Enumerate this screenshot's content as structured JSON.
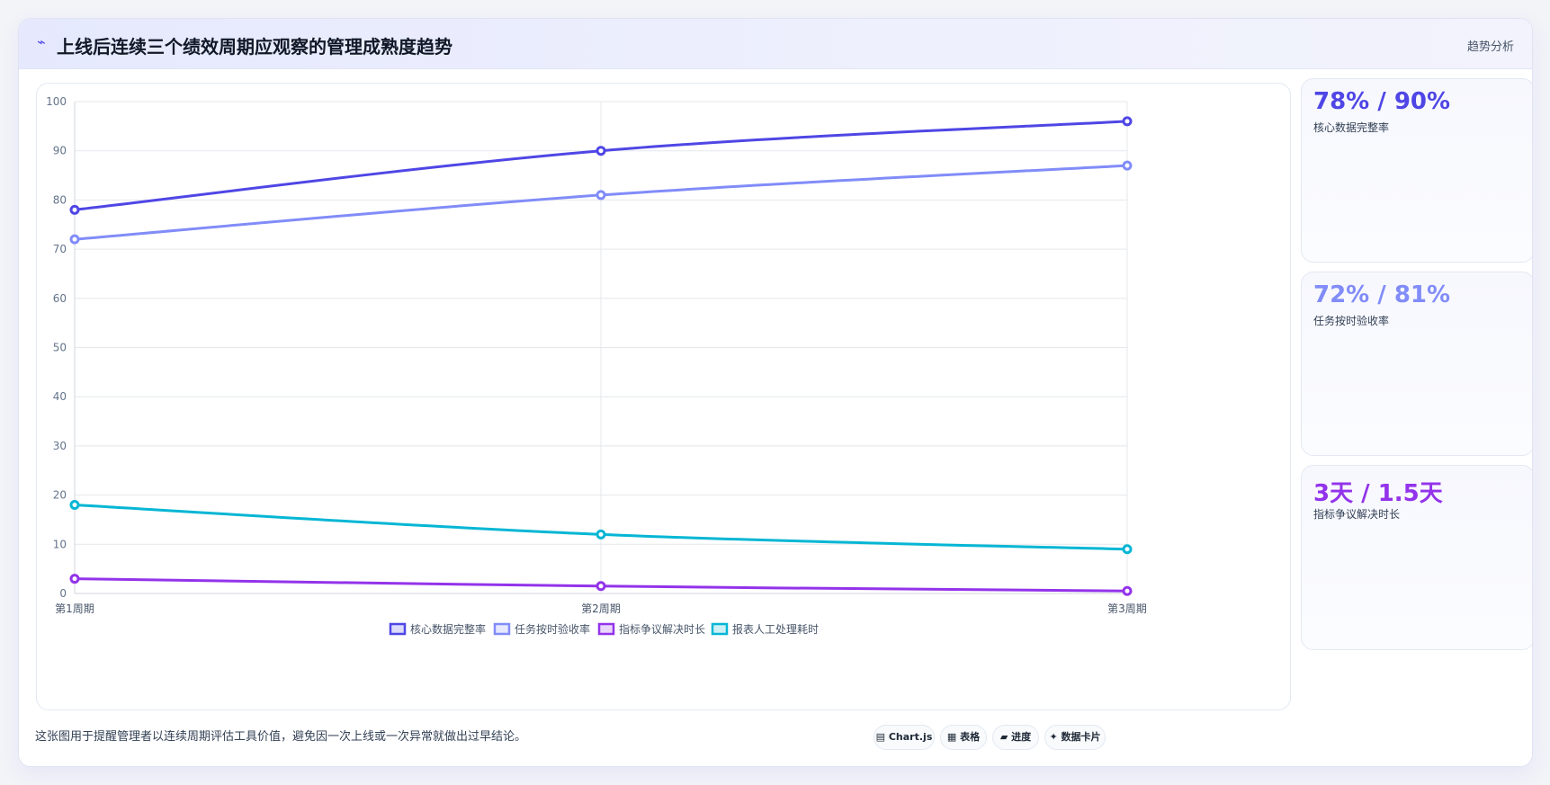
{
  "header": {
    "icon": "bolt-icon",
    "title": "上线后连续三个绩效周期应观察的管理成熟度趋势",
    "tag": "趋势分析"
  },
  "kpis": [
    {
      "value": "78% / 90%",
      "label": "核心数据完整率",
      "color": "#4f46e5"
    },
    {
      "value": "72% / 81%",
      "label": "任务按时验收率",
      "color": "#818cf8"
    },
    {
      "value": "3天 / 1.5天",
      "label": "指标争议解决时长",
      "color": "#9333ea"
    }
  ],
  "footer": {
    "note": "这张图用于提醒管理者以连续周期评估工具价值，避免因一次上线或一次异常就做出过早结论。",
    "chips": [
      {
        "icon": "chart-icon",
        "glyph": "▤",
        "label": "Chart.js"
      },
      {
        "icon": "table-icon",
        "glyph": "▦",
        "label": "表格"
      },
      {
        "icon": "progress-icon",
        "glyph": "▰",
        "label": "进度"
      },
      {
        "icon": "card-icon",
        "glyph": "✦",
        "label": "数据卡片"
      }
    ]
  },
  "chart_data": {
    "type": "line",
    "categories": [
      "第1周期",
      "第2周期",
      "第3周期"
    ],
    "ylim": [
      0,
      100
    ],
    "yticks": [
      0,
      10,
      20,
      30,
      40,
      50,
      60,
      70,
      80,
      90,
      100
    ],
    "grid": true,
    "legend": "bottom",
    "series": [
      {
        "name": "核心数据完整率",
        "values": [
          78,
          90,
          96
        ],
        "color": "#4f46e5"
      },
      {
        "name": "任务按时验收率",
        "values": [
          72,
          81,
          87
        ],
        "color": "#818cf8"
      },
      {
        "name": "指标争议解决时长",
        "values": [
          3,
          1.5,
          0.5
        ],
        "color": "#9333ea"
      },
      {
        "name": "报表人工处理耗时",
        "values": [
          18,
          12,
          9
        ],
        "color": "#06b6d4"
      }
    ]
  }
}
